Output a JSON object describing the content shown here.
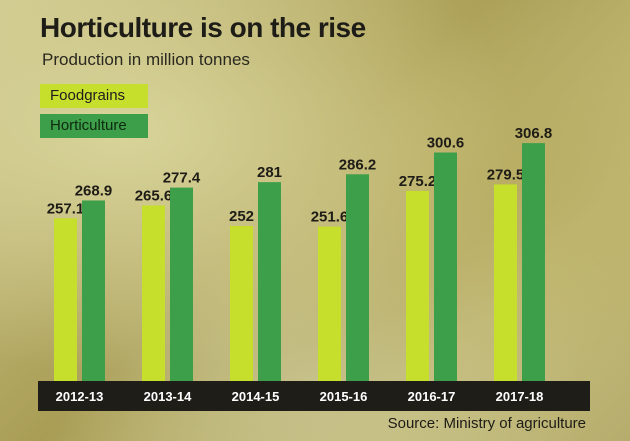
{
  "title": "Horticulture is on the rise",
  "subtitle": "Production in million tonnes",
  "source": "Source: Ministry of agriculture",
  "colors": {
    "foodgrains": "#c6de2c",
    "horticulture": "#3d9f49",
    "axis_band": "#1f1d18"
  },
  "chart_data": {
    "type": "bar",
    "title": "Horticulture is on the rise",
    "subtitle": "Production in million tonnes",
    "categories": [
      "2012-13",
      "2013-14",
      "2014-15",
      "2015-16",
      "2016-17",
      "2017-18"
    ],
    "series": [
      {
        "name": "Foodgrains",
        "values": [
          257.1,
          265.6,
          252,
          251.6,
          275.2,
          279.5
        ],
        "labels": [
          "257.1",
          "265.6",
          "252",
          "251.6",
          "275.2",
          "279.5"
        ]
      },
      {
        "name": "Horticulture",
        "values": [
          268.9,
          277.4,
          281,
          286.2,
          300.6,
          306.8
        ],
        "labels": [
          "268.9",
          "277.4",
          "281",
          "286.2",
          "300.6",
          "306.8"
        ]
      }
    ],
    "legend": "top-left",
    "grid": false
  }
}
